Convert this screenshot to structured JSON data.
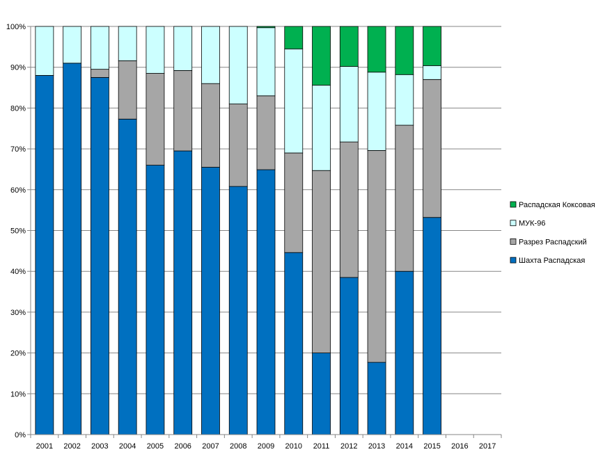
{
  "chart_data": {
    "type": "bar",
    "stacked": true,
    "percent": true,
    "title": "",
    "xlabel": "",
    "ylabel": "",
    "ylim": [
      0,
      100
    ],
    "yticks": [
      "0%",
      "10%",
      "20%",
      "30%",
      "40%",
      "50%",
      "60%",
      "70%",
      "80%",
      "90%",
      "100%"
    ],
    "categories": [
      "2001",
      "2002",
      "2003",
      "2004",
      "2005",
      "2006",
      "2007",
      "2008",
      "2009",
      "2010",
      "2011",
      "2012",
      "2013",
      "2014",
      "2015",
      "2016",
      "2017"
    ],
    "legend_position": "right",
    "series": [
      {
        "name": "Шахта Распадская",
        "color": "#0070C0",
        "values": [
          88,
          91,
          87.5,
          77.3,
          66,
          69.5,
          65.5,
          60.8,
          64.9,
          44.6,
          20,
          38.5,
          17.7,
          40,
          53.2,
          null,
          null
        ]
      },
      {
        "name": "Разрез Распадский",
        "color": "#A6A6A6",
        "values": [
          0,
          0,
          2,
          14.3,
          22.5,
          19.7,
          20.5,
          20.2,
          18.1,
          24.4,
          44.7,
          33.2,
          51.9,
          35.8,
          33.8,
          null,
          null
        ]
      },
      {
        "name": "МУК-96",
        "color": "#CCFFFF",
        "values": [
          12,
          9,
          10.5,
          8.4,
          11.5,
          10.8,
          14,
          19,
          16.7,
          25.5,
          20.9,
          18.5,
          19.2,
          12.4,
          3.4,
          null,
          null
        ]
      },
      {
        "name": "Распадская Коксовая",
        "color": "#00B050",
        "values": [
          0,
          0,
          0,
          0,
          0,
          0,
          0,
          0,
          0.3,
          5.5,
          14.4,
          9.8,
          11.2,
          11.8,
          9.6,
          null,
          null
        ]
      }
    ],
    "legend_order": [
      "Распадская Коксовая",
      "МУК-96",
      "Разрез Распадский",
      "Шахта Распадская"
    ]
  }
}
